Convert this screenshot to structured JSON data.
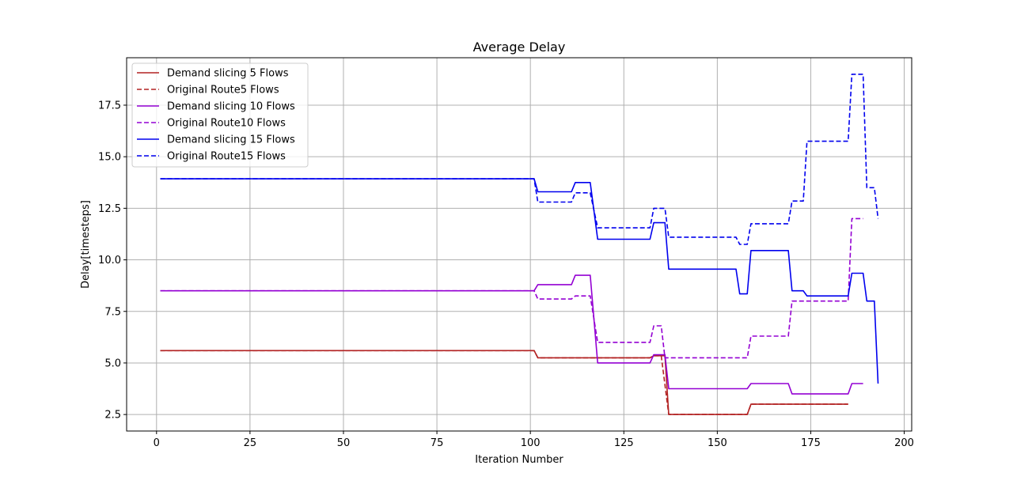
{
  "chart_data": {
    "type": "line",
    "title": "Average Delay",
    "xlabel": "Iteration Number",
    "ylabel": "Delay[timesteps]",
    "xlim": [
      -8,
      202
    ],
    "ylim": [
      1.7,
      19.8
    ],
    "xticks": [
      0,
      25,
      50,
      75,
      100,
      125,
      150,
      175,
      200
    ],
    "xtick_labels": [
      "0",
      "25",
      "50",
      "75",
      "100",
      "125",
      "150",
      "175",
      "200"
    ],
    "yticks": [
      2.5,
      5.0,
      7.5,
      10.0,
      12.5,
      15.0,
      17.5
    ],
    "ytick_labels": [
      "2.5",
      "5.0",
      "7.5",
      "10.0",
      "12.5",
      "15.0",
      "17.5"
    ],
    "grid": true,
    "legend_position": "top-left",
    "series": [
      {
        "name": "Demand slicing 5 Flows",
        "color": "#b22222",
        "dash": "solid",
        "x": [
          1,
          101,
          102,
          132,
          133,
          136,
          137,
          158,
          159,
          185
        ],
        "y": [
          5.6,
          5.6,
          5.25,
          5.25,
          5.35,
          5.35,
          2.5,
          2.5,
          3.0,
          3.0
        ]
      },
      {
        "name": "Original Route5 Flows",
        "color": "#b22222",
        "dash": "dashed",
        "x": [
          1,
          101,
          102,
          132,
          133,
          135,
          137,
          158,
          159,
          185
        ],
        "y": [
          5.6,
          5.6,
          5.25,
          5.25,
          5.35,
          5.35,
          2.5,
          2.5,
          3.0,
          3.0
        ]
      },
      {
        "name": "Demand slicing 10 Flows",
        "color": "#9400d3",
        "dash": "solid",
        "x": [
          1,
          101,
          102,
          111,
          112,
          116,
          118,
          132,
          133,
          136,
          137,
          158,
          159,
          169,
          170,
          185,
          186,
          189
        ],
        "y": [
          8.5,
          8.5,
          8.8,
          8.8,
          9.25,
          9.25,
          5.0,
          5.0,
          5.4,
          5.4,
          3.75,
          3.75,
          4.0,
          4.0,
          3.5,
          3.5,
          4.0,
          4.0
        ]
      },
      {
        "name": "Original Route10 Flows",
        "color": "#9400d3",
        "dash": "dashed",
        "x": [
          1,
          101,
          102,
          111,
          112,
          116,
          118,
          132,
          133,
          135,
          136,
          158,
          159,
          169,
          170,
          185,
          186,
          189
        ],
        "y": [
          8.5,
          8.5,
          8.1,
          8.1,
          8.25,
          8.25,
          6.0,
          6.0,
          6.8,
          6.8,
          5.25,
          5.25,
          6.3,
          6.3,
          8.0,
          8.0,
          12.0,
          12.0
        ]
      },
      {
        "name": "Demand slicing 15 Flows",
        "color": "#0000ee",
        "dash": "solid",
        "x": [
          1,
          101,
          102,
          111,
          112,
          116,
          118,
          132,
          133,
          136,
          137,
          155,
          156,
          158,
          159,
          169,
          170,
          173,
          174,
          185,
          186,
          189,
          190,
          192,
          193
        ],
        "y": [
          13.93,
          13.93,
          13.3,
          13.3,
          13.75,
          13.75,
          11.0,
          11.0,
          11.8,
          11.8,
          9.55,
          9.55,
          8.35,
          8.35,
          10.45,
          10.45,
          8.5,
          8.5,
          8.25,
          8.25,
          9.35,
          9.35,
          8.0,
          8.0,
          4.0
        ]
      },
      {
        "name": "Original Route15 Flows",
        "color": "#0000ee",
        "dash": "dashed",
        "x": [
          1,
          101,
          102,
          111,
          112,
          116,
          118,
          132,
          133,
          136,
          137,
          155,
          156,
          158,
          159,
          169,
          170,
          173,
          174,
          185,
          186,
          189,
          190,
          192,
          193
        ],
        "y": [
          13.93,
          13.93,
          12.8,
          12.8,
          13.25,
          13.25,
          11.55,
          11.55,
          12.5,
          12.5,
          11.1,
          11.1,
          10.75,
          10.75,
          11.75,
          11.75,
          12.85,
          12.85,
          15.75,
          15.75,
          19.0,
          19.0,
          13.5,
          13.5,
          12.0
        ]
      }
    ]
  }
}
